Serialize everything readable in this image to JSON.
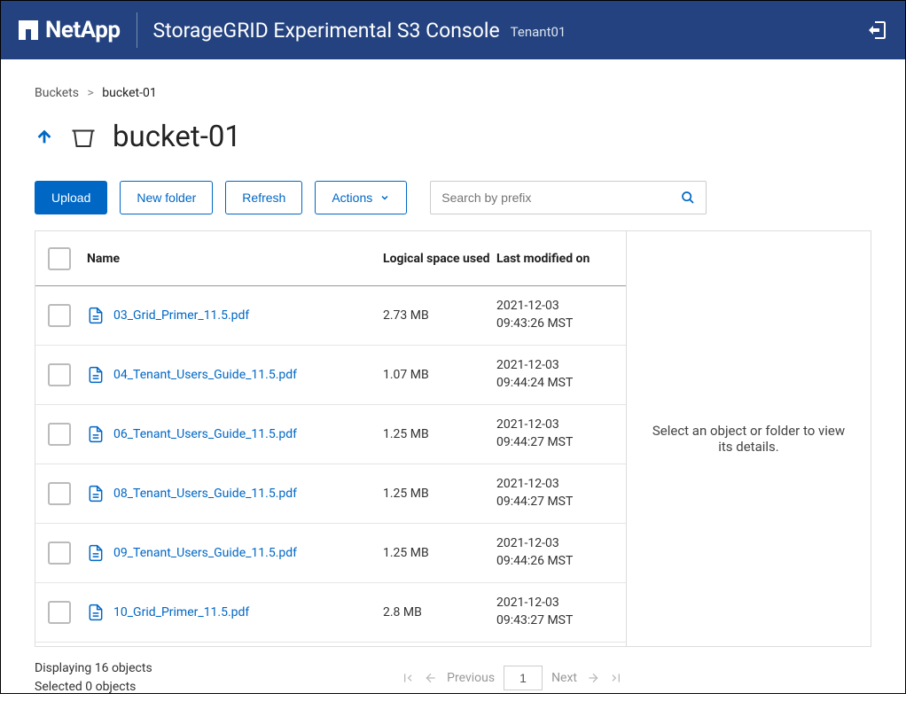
{
  "header": {
    "brand": "NetApp",
    "app_title": "StorageGRID Experimental S3 Console",
    "tenant": "Tenant01"
  },
  "breadcrumb": {
    "root": "Buckets",
    "current": "bucket-01"
  },
  "page_title": "bucket-01",
  "toolbar": {
    "upload": "Upload",
    "new_folder": "New folder",
    "refresh": "Refresh",
    "actions": "Actions",
    "search_placeholder": "Search by prefix"
  },
  "columns": {
    "name": "Name",
    "size": "Logical space used",
    "modified": "Last modified on"
  },
  "rows": [
    {
      "name": "03_Grid_Primer_11.5.pdf",
      "size": "2.73 MB",
      "date": "2021-12-03",
      "time": "09:43:26 MST"
    },
    {
      "name": "04_Tenant_Users_Guide_11.5.pdf",
      "size": "1.07 MB",
      "date": "2021-12-03",
      "time": "09:44:24 MST"
    },
    {
      "name": "06_Tenant_Users_Guide_11.5.pdf",
      "size": "1.25 MB",
      "date": "2021-12-03",
      "time": "09:44:27 MST"
    },
    {
      "name": "08_Tenant_Users_Guide_11.5.pdf",
      "size": "1.25 MB",
      "date": "2021-12-03",
      "time": "09:44:27 MST"
    },
    {
      "name": "09_Tenant_Users_Guide_11.5.pdf",
      "size": "1.25 MB",
      "date": "2021-12-03",
      "time": "09:44:26 MST"
    },
    {
      "name": "10_Grid_Primer_11.5.pdf",
      "size": "2.8 MB",
      "date": "2021-12-03",
      "time": "09:43:27 MST"
    }
  ],
  "side_panel": {
    "empty_text": "Select an object or folder to view its details."
  },
  "footer": {
    "displaying_prefix": "Displaying",
    "displaying_count": "16",
    "displaying_suffix": "objects",
    "selected_prefix": "Selected",
    "selected_count": "0",
    "selected_suffix": "objects",
    "previous": "Previous",
    "page": "1",
    "next": "Next"
  },
  "colors": {
    "header_bg": "#23427f",
    "primary": "#0067c5",
    "link": "#0067c5",
    "border": "#dddddd",
    "text": "#333333"
  }
}
